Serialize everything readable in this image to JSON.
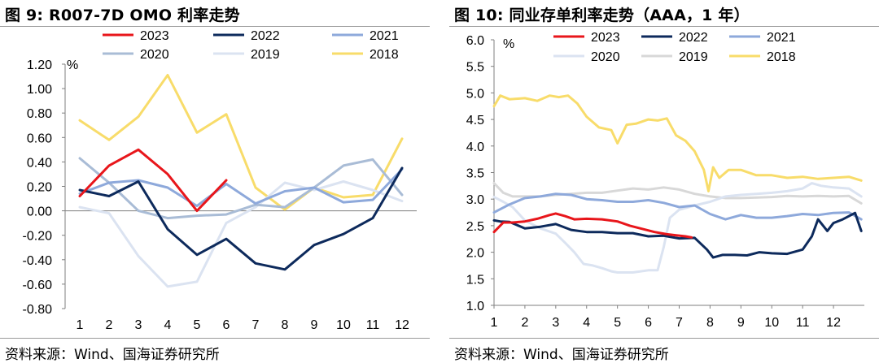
{
  "panels": [
    {
      "title": "图 9:  R007-7D OMO 利率走势",
      "source": "资料来源：Wind、国海证券研究所"
    },
    {
      "title": "图 10:  同业存单利率走势（AAA，1 年）",
      "source": "资料来源：Wind、国海证券研究所"
    }
  ],
  "chart_data": [
    {
      "type": "line",
      "unit_label": "%",
      "x": [
        1,
        2,
        3,
        4,
        5,
        6,
        7,
        8,
        9,
        10,
        11,
        12
      ],
      "xlim": [
        1,
        12
      ],
      "ylim": [
        -0.8,
        1.2
      ],
      "yticks": [
        "1.20",
        "1.00",
        "0.80",
        "0.60",
        "0.40",
        "0.20",
        "0.00",
        "-0.20",
        "-0.40",
        "-0.60",
        "-0.80"
      ],
      "xticks": [
        "1",
        "2",
        "3",
        "4",
        "5",
        "6",
        "7",
        "8",
        "9",
        "10",
        "11",
        "12"
      ],
      "legend_position": "top",
      "series": [
        {
          "name": "2023",
          "color": "#e8161b",
          "values": [
            0.12,
            0.37,
            0.5,
            0.3,
            0.0,
            0.25,
            null,
            null,
            null,
            null,
            null,
            null
          ]
        },
        {
          "name": "2022",
          "color": "#0d2a5c",
          "values": [
            0.17,
            0.12,
            0.24,
            -0.15,
            -0.36,
            -0.23,
            -0.43,
            -0.48,
            -0.28,
            -0.19,
            -0.06,
            0.35
          ]
        },
        {
          "name": "2021",
          "color": "#8ea9db",
          "values": [
            0.14,
            0.23,
            0.25,
            0.19,
            0.04,
            0.22,
            0.06,
            0.16,
            0.19,
            0.07,
            0.09,
            0.34
          ]
        },
        {
          "name": "2020",
          "color": "#a9bcd6",
          "values": [
            0.43,
            0.23,
            0.0,
            -0.06,
            -0.04,
            -0.03,
            0.05,
            0.03,
            0.19,
            0.37,
            0.42,
            0.13
          ]
        },
        {
          "name": "2019",
          "color": "#dbe3f1",
          "values": [
            0.03,
            -0.02,
            -0.37,
            -0.62,
            -0.58,
            -0.1,
            0.03,
            0.23,
            0.17,
            0.24,
            0.17,
            0.08
          ]
        },
        {
          "name": "2018",
          "color": "#f8dc6a",
          "values": [
            0.74,
            0.58,
            0.77,
            1.11,
            0.64,
            0.79,
            0.19,
            0.01,
            0.19,
            0.11,
            0.13,
            0.59
          ]
        }
      ]
    },
    {
      "type": "line",
      "unit_label": "%",
      "x_label_positions": [
        1,
        2,
        3,
        4,
        5,
        6,
        7,
        8,
        9,
        10,
        11,
        12
      ],
      "xlim": [
        1,
        13
      ],
      "ylim": [
        1.0,
        6.0
      ],
      "yticks": [
        "6.0",
        "5.5",
        "5.0",
        "4.5",
        "4.0",
        "3.5",
        "3.0",
        "2.5",
        "2.0",
        "1.5",
        "1.0"
      ],
      "xticks": [
        "1",
        "2",
        "3",
        "4",
        "5",
        "6",
        "7",
        "8",
        "9",
        "10",
        "11",
        "12"
      ],
      "legend_position": "top",
      "series": [
        {
          "name": "2023",
          "color": "#e8161b",
          "x": [
            1,
            1.3,
            1.6,
            2,
            2.4,
            2.8,
            3,
            3.3,
            3.6,
            4,
            4.5,
            5,
            5.4,
            5.8,
            6.2,
            6.6,
            6.9,
            7.2,
            7.4
          ],
          "values": [
            2.38,
            2.56,
            2.56,
            2.58,
            2.63,
            2.7,
            2.73,
            2.68,
            2.62,
            2.63,
            2.62,
            2.58,
            2.5,
            2.44,
            2.38,
            2.34,
            2.32,
            2.3,
            2.28
          ]
        },
        {
          "name": "2022",
          "color": "#0d2a5c",
          "x": [
            1,
            1.2,
            1.5,
            2,
            2.5,
            3,
            3.5,
            4,
            4.5,
            5,
            5.5,
            6,
            6.5,
            7,
            7.5,
            7.9,
            8.1,
            8.4,
            8.8,
            9.2,
            9.6,
            10,
            10.5,
            11,
            11.3,
            11.5,
            11.8,
            12,
            12.3,
            12.7,
            12.9
          ],
          "values": [
            2.6,
            2.58,
            2.57,
            2.45,
            2.48,
            2.53,
            2.42,
            2.38,
            2.38,
            2.36,
            2.36,
            2.3,
            2.31,
            2.26,
            2.27,
            2.05,
            1.9,
            1.95,
            1.95,
            1.94,
            2.0,
            1.98,
            1.97,
            2.05,
            2.3,
            2.62,
            2.4,
            2.55,
            2.62,
            2.74,
            2.4
          ]
        },
        {
          "name": "2021",
          "color": "#8ea9db",
          "x": [
            1,
            1.5,
            2,
            2.5,
            3,
            3.5,
            4,
            4.5,
            5,
            5.5,
            6,
            6.5,
            7,
            7.5,
            8,
            8.5,
            9,
            9.5,
            10,
            10.5,
            11,
            11.5,
            12,
            12.5,
            12.9
          ],
          "values": [
            2.75,
            2.9,
            3.02,
            3.05,
            3.1,
            3.08,
            3.0,
            2.98,
            2.95,
            2.95,
            2.98,
            2.93,
            2.85,
            2.88,
            2.72,
            2.62,
            2.7,
            2.65,
            2.65,
            2.68,
            2.72,
            2.7,
            2.74,
            2.75,
            2.62
          ]
        },
        {
          "name": "2020",
          "color": "#dbe3f1",
          "x": [
            1,
            1.3,
            1.6,
            2,
            2.5,
            3,
            3.3,
            3.6,
            3.9,
            4.2,
            4.5,
            4.8,
            5,
            5.5,
            6,
            6.3,
            6.5,
            6.7,
            7,
            7.5,
            8,
            8.5,
            9,
            9.5,
            10,
            10.5,
            11,
            11.3,
            11.6,
            12,
            12.5,
            12.9
          ],
          "values": [
            3.04,
            2.95,
            2.85,
            2.6,
            2.45,
            2.35,
            2.18,
            2.0,
            1.78,
            1.75,
            1.7,
            1.64,
            1.62,
            1.62,
            1.66,
            1.66,
            2.1,
            2.65,
            2.8,
            2.88,
            2.95,
            3.05,
            3.08,
            3.1,
            3.12,
            3.15,
            3.2,
            3.3,
            3.25,
            3.22,
            3.2,
            3.05
          ]
        },
        {
          "name": "2019",
          "color": "#d8d8d8",
          "x": [
            1,
            1.3,
            1.6,
            2,
            2.5,
            3,
            3.5,
            4,
            4.5,
            5,
            5.5,
            6,
            6.5,
            7,
            7.5,
            8,
            8.5,
            9,
            9.5,
            10,
            10.5,
            11,
            11.5,
            12,
            12.5,
            12.9
          ],
          "values": [
            3.3,
            3.12,
            3.05,
            3.05,
            3.05,
            3.08,
            3.1,
            3.12,
            3.12,
            3.16,
            3.2,
            3.18,
            3.22,
            3.18,
            3.1,
            3.05,
            3.02,
            3.02,
            3.03,
            3.04,
            3.06,
            3.05,
            3.06,
            3.05,
            3.06,
            2.92
          ]
        },
        {
          "name": "2018",
          "color": "#f8dc6a",
          "x": [
            1,
            1.2,
            1.5,
            2,
            2.4,
            2.8,
            3.1,
            3.4,
            3.7,
            4,
            4.4,
            4.8,
            5,
            5.3,
            5.6,
            6,
            6.3,
            6.6,
            6.9,
            7.2,
            7.5,
            7.8,
            7.95,
            8.1,
            8.3,
            8.6,
            9,
            9.5,
            10,
            10.5,
            11,
            11.5,
            12,
            12.5,
            12.9
          ],
          "values": [
            4.75,
            4.95,
            4.88,
            4.9,
            4.85,
            4.95,
            4.92,
            4.95,
            4.8,
            4.55,
            4.35,
            4.3,
            4.05,
            4.4,
            4.42,
            4.5,
            4.48,
            4.52,
            4.2,
            4.1,
            3.9,
            3.55,
            3.15,
            3.6,
            3.4,
            3.55,
            3.55,
            3.45,
            3.45,
            3.4,
            3.42,
            3.38,
            3.4,
            3.42,
            3.35
          ]
        }
      ]
    }
  ]
}
